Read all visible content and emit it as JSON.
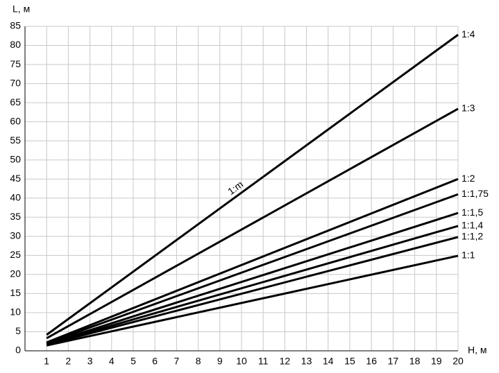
{
  "chart_data": {
    "type": "line",
    "y_label": "L, м",
    "x_label": "H, м",
    "annotation": "1:m",
    "xlim": [
      0,
      20
    ],
    "xticks": [
      1,
      2,
      3,
      4,
      5,
      6,
      7,
      8,
      9,
      10,
      11,
      12,
      13,
      14,
      15,
      16,
      17,
      18,
      19,
      20
    ],
    "ylim": [
      0,
      85
    ],
    "yticks": [
      0,
      5,
      10,
      15,
      20,
      25,
      30,
      35,
      40,
      45,
      50,
      55,
      60,
      65,
      70,
      75,
      80,
      85
    ],
    "grid": true,
    "x": [
      1,
      20
    ],
    "series": [
      {
        "name": "1:4",
        "color": "#000000",
        "values": [
          4.2,
          82.8
        ]
      },
      {
        "name": "1:3",
        "color": "#000000",
        "values": [
          3.3,
          63.4
        ]
      },
      {
        "name": "1:2",
        "color": "#000000",
        "values": [
          2.2,
          45
        ]
      },
      {
        "name": "1:1,75",
        "color": "#000000",
        "values": [
          2,
          41
        ]
      },
      {
        "name": "1:1,5",
        "color": "#000000",
        "values": [
          1.8,
          36.1
        ]
      },
      {
        "name": "1:1,4",
        "color": "#000000",
        "values": [
          1.7,
          32.7
        ]
      },
      {
        "name": "1:1,2",
        "color": "#000000",
        "values": [
          1.6,
          29.8
        ]
      },
      {
        "name": "1:1",
        "color": "#000000",
        "values": [
          1.4,
          24.9
        ]
      }
    ]
  }
}
